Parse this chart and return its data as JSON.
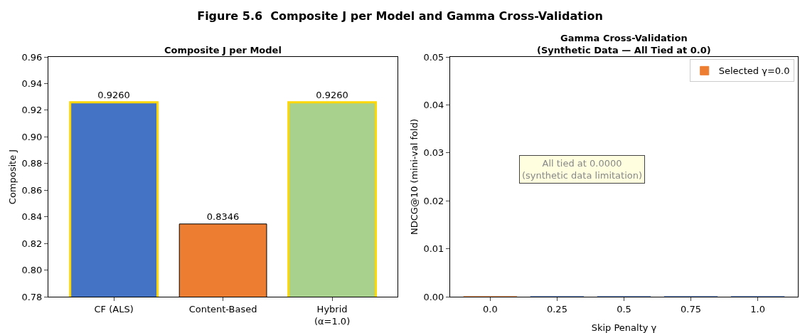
{
  "chart_data": [
    {
      "type": "bar",
      "title": "Composite J per Model",
      "subtitle": "Figure 5.6  Composite J per Model and Gamma Cross-Validation",
      "ylabel": "Composite J",
      "categories": [
        "CF (ALS)",
        "Content-Based",
        "Hybrid\n(α=1.0)"
      ],
      "values": [
        0.926,
        0.8346,
        0.926
      ],
      "colors": [
        "#4472c4",
        "#ed7d31",
        "#a9d18e"
      ],
      "value_labels": [
        "0.9260",
        "0.8346",
        "0.9260"
      ],
      "ylim": [
        0.78,
        0.96
      ],
      "yticks": [
        {
          "value": 0.78,
          "label": "0.78"
        },
        {
          "value": 0.8,
          "label": "0.80"
        },
        {
          "value": 0.82,
          "label": "0.82"
        },
        {
          "value": 0.84,
          "label": "0.84"
        },
        {
          "value": 0.86,
          "label": "0.86"
        },
        {
          "value": 0.88,
          "label": "0.88"
        },
        {
          "value": 0.9,
          "label": "0.90"
        },
        {
          "value": 0.92,
          "label": "0.92"
        },
        {
          "value": 0.94,
          "label": "0.94"
        },
        {
          "value": 0.96,
          "label": "0.96"
        }
      ]
    },
    {
      "type": "bar",
      "title": "Gamma Cross-Validation\n(Synthetic Data — All Tied at 0.0)",
      "xlabel": "Skip Penalty γ",
      "ylabel": "NDCG@10 (mini-val fold)",
      "categories": [
        "0.0",
        "0.25",
        "0.5",
        "0.75",
        "1.0"
      ],
      "series": [
        {
          "name": "Selected γ=0.0",
          "color": "#ed7d31",
          "values": [
            0,
            null,
            null,
            null,
            null
          ]
        },
        {
          "color": "#4472c4",
          "values": [
            null,
            0,
            0,
            0,
            0
          ]
        }
      ],
      "ylim": [
        0,
        0.05
      ],
      "yticks": [
        {
          "value": 0,
          "label": "0.00"
        },
        {
          "value": 0.01,
          "label": "0.01"
        },
        {
          "value": 0.02,
          "label": "0.02"
        },
        {
          "value": 0.03,
          "label": "0.03"
        },
        {
          "value": 0.04,
          "label": "0.04"
        },
        {
          "value": 0.05,
          "label": "0.05"
        }
      ],
      "annotations": [
        "All tied at 0.0000\n(synthetic data limitation)"
      ],
      "legend": "top right"
    }
  ]
}
